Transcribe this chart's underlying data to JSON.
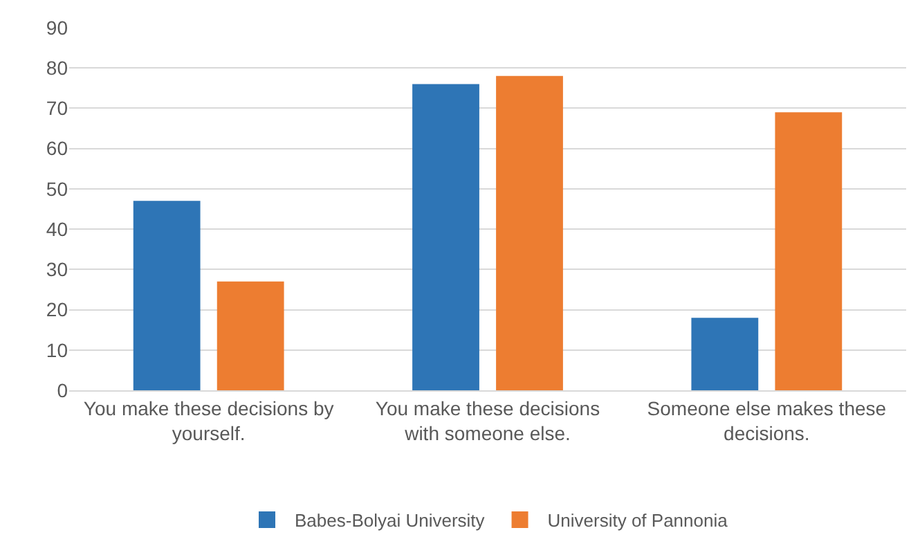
{
  "chart_data": {
    "type": "bar",
    "categories": [
      "You make these decisions by yourself.",
      "You make these decisions with someone else.",
      "Someone else makes these decisions."
    ],
    "series": [
      {
        "name": "Babes-Bolyai University",
        "color": "#2e75b6",
        "values": [
          47,
          76,
          18
        ]
      },
      {
        "name": "University of Pannonia",
        "color": "#ed7d31",
        "values": [
          27,
          78,
          69
        ]
      }
    ],
    "ylim": [
      0,
      90
    ],
    "yticks": [
      0,
      10,
      20,
      30,
      40,
      50,
      60,
      70,
      80,
      90
    ],
    "grid": "y",
    "legend": "bottom"
  }
}
